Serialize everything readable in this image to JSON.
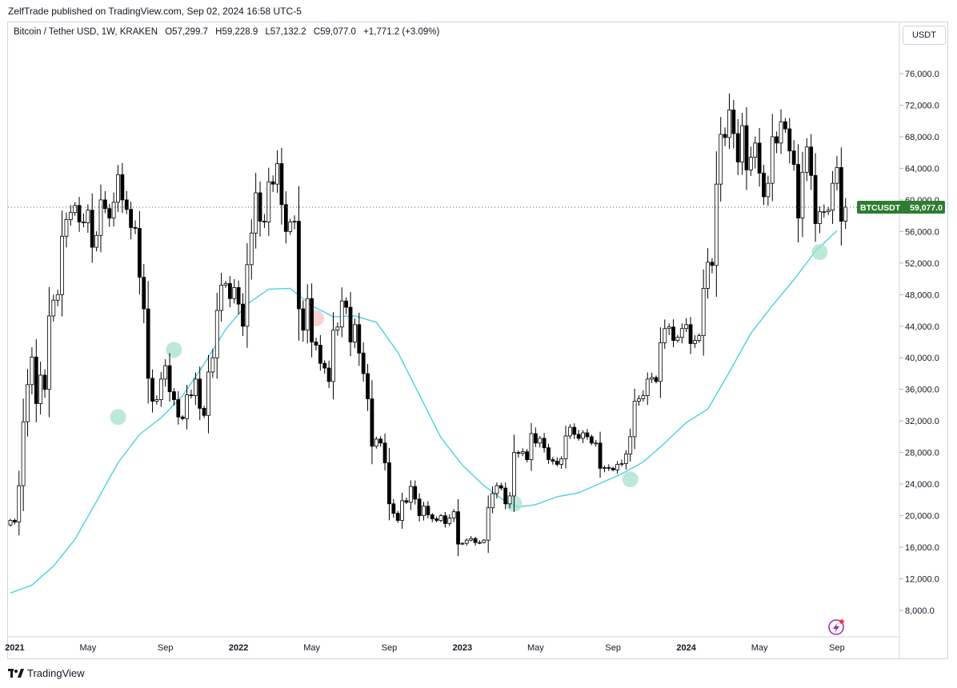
{
  "header": {
    "publisher_line": "ZelfTrade published on TradingView.com, Sep 02, 2024 16:58 UTC-5"
  },
  "symbol_bar": {
    "name": "Bitcoin / Tether USD, 1W, KRAKEN",
    "open": "O57,299.7",
    "high": "H59,228.9",
    "low": "L57,132.2",
    "close": "C59,077.0",
    "change": "+1,771.2 (+3.09%)"
  },
  "currency_button": "USDT",
  "price_label": {
    "ticker": "BTCUSDT",
    "value": "59,077.0"
  },
  "brand": "TradingView",
  "colors": {
    "up_candle": "#ffffff",
    "down_candle": "#000000",
    "ma_line": "#4dd0e1",
    "touch_green": "#a5e0d0",
    "touch_red": "#f7c3c3",
    "price_tag": "#2e7d32",
    "last_price_line": "#2e7d32"
  },
  "chart_data": {
    "type": "candlestick",
    "ylim": [
      4000,
      80000
    ],
    "y_ticks": [
      8000,
      12000,
      16000,
      20000,
      24000,
      28000,
      32000,
      36000,
      40000,
      44000,
      48000,
      52000,
      56000,
      60000,
      64000,
      68000,
      72000,
      76000
    ],
    "y_tick_labels": [
      "8,000.0",
      "12,000.0",
      "16,000.0",
      "20,000.0",
      "24,000.0",
      "28,000.0",
      "32,000.0",
      "36,000.0",
      "40,000.0",
      "44,000.0",
      "48,000.0",
      "52,000.0",
      "56,000.0",
      "60,000.0",
      "64,000.0",
      "68,000.0",
      "72,000.0",
      "76,000.0"
    ],
    "x_tick_labels": [
      {
        "label": "2021",
        "week": 1,
        "bold": true
      },
      {
        "label": "May",
        "week": 18,
        "bold": false
      },
      {
        "label": "Sep",
        "week": 36,
        "bold": false
      },
      {
        "label": "2022",
        "week": 53,
        "bold": true
      },
      {
        "label": "May",
        "week": 70,
        "bold": false
      },
      {
        "label": "Sep",
        "week": 88,
        "bold": false
      },
      {
        "label": "2023",
        "week": 105,
        "bold": true
      },
      {
        "label": "May",
        "week": 122,
        "bold": false
      },
      {
        "label": "Sep",
        "week": 140,
        "bold": false
      },
      {
        "label": "2024",
        "week": 157,
        "bold": true
      },
      {
        "label": "May",
        "week": 174,
        "bold": false
      },
      {
        "label": "Sep",
        "week": 192,
        "bold": false
      }
    ],
    "last_price": 59077,
    "closes": [
      19400,
      19200,
      23800,
      31900,
      36600,
      40100,
      34200,
      37800,
      36000,
      45300,
      47300,
      48000,
      55400,
      57500,
      58400,
      59300,
      57200,
      57100,
      58700,
      54000,
      55500,
      60000,
      58900,
      57700,
      59700,
      63200,
      60000,
      58800,
      56500,
      56400,
      50200,
      46200,
      37400,
      34500,
      34700,
      37300,
      39000,
      35700,
      34700,
      32500,
      32300,
      35300,
      35200,
      37300,
      33600,
      32700,
      38200,
      40000,
      46000,
      49200,
      49400,
      47500,
      48900,
      46800,
      44000,
      51800,
      55800,
      60900,
      57300,
      57200,
      62300,
      62000,
      64600,
      59400,
      56000,
      57200,
      57300,
      46200,
      43500,
      47500,
      42000,
      41600,
      39300,
      38700,
      37000,
      43500,
      43900,
      47200,
      46400,
      42000,
      44200,
      40600,
      38000,
      34800,
      28800,
      29700,
      29200,
      26700,
      21500,
      20300,
      19400,
      21900,
      21700,
      23700,
      22100,
      20000,
      21200,
      20100,
      19600,
      19400,
      20000,
      19000,
      19700,
      20500,
      16400,
      16500,
      16900,
      17100,
      16600,
      16600,
      16900,
      21000,
      22800,
      23800,
      23500,
      21500,
      22500,
      28000,
      27900,
      28100,
      27100,
      30400,
      29200,
      29800,
      28600,
      27100,
      26900,
      26500,
      27200,
      30100,
      31200,
      30300,
      29800,
      30500,
      30000,
      29200,
      29200,
      26000,
      26100,
      26000,
      25800,
      26500,
      26600,
      27800,
      30000,
      34500,
      34800,
      35200,
      37300,
      37500,
      37000,
      41900,
      43700,
      43900,
      42200,
      42600,
      43700,
      44200,
      41800,
      42200,
      42800,
      48800,
      52100,
      51700,
      62000,
      68300,
      67900,
      71400,
      68400,
      64800,
      69400,
      63800,
      65400,
      67200,
      63400,
      60400,
      62100,
      68000,
      67200,
      69900,
      69000,
      66200,
      64500,
      57700,
      63500,
      66700,
      63100,
      57000,
      58500,
      58500,
      58700,
      62100,
      64100,
      57300,
      59077
    ],
    "moving_average": {
      "name": "",
      "values": [
        {
          "week": 0,
          "value": 10200
        },
        {
          "week": 5,
          "value": 11200
        },
        {
          "week": 10,
          "value": 13600
        },
        {
          "week": 15,
          "value": 17000
        },
        {
          "week": 20,
          "value": 21800
        },
        {
          "week": 25,
          "value": 26700
        },
        {
          "week": 30,
          "value": 30300
        },
        {
          "week": 35,
          "value": 32400
        },
        {
          "week": 40,
          "value": 35200
        },
        {
          "week": 45,
          "value": 39200
        },
        {
          "week": 50,
          "value": 43600
        },
        {
          "week": 55,
          "value": 46800
        },
        {
          "week": 60,
          "value": 48700
        },
        {
          "week": 65,
          "value": 48800
        },
        {
          "week": 70,
          "value": 46600
        },
        {
          "week": 75,
          "value": 45200
        },
        {
          "week": 80,
          "value": 45300
        },
        {
          "week": 85,
          "value": 44500
        },
        {
          "week": 90,
          "value": 40700
        },
        {
          "week": 95,
          "value": 35300
        },
        {
          "week": 100,
          "value": 29900
        },
        {
          "week": 105,
          "value": 26400
        },
        {
          "week": 110,
          "value": 23800
        },
        {
          "week": 115,
          "value": 21800
        },
        {
          "week": 118,
          "value": 21100
        },
        {
          "week": 122,
          "value": 21400
        },
        {
          "week": 127,
          "value": 22400
        },
        {
          "week": 132,
          "value": 22900
        },
        {
          "week": 137,
          "value": 24100
        },
        {
          "week": 142,
          "value": 25300
        },
        {
          "week": 147,
          "value": 26800
        },
        {
          "week": 152,
          "value": 29200
        },
        {
          "week": 157,
          "value": 31800
        },
        {
          "week": 162,
          "value": 33500
        },
        {
          "week": 167,
          "value": 38200
        },
        {
          "week": 172,
          "value": 43100
        },
        {
          "week": 177,
          "value": 46600
        },
        {
          "week": 182,
          "value": 49900
        },
        {
          "week": 187,
          "value": 53500
        },
        {
          "week": 192,
          "value": 56100
        }
      ]
    },
    "touch_markers": [
      {
        "week": 25,
        "value": 32500,
        "kind": "support"
      },
      {
        "week": 38,
        "value": 41000,
        "kind": "support"
      },
      {
        "week": 71,
        "value": 45000,
        "kind": "resistance"
      },
      {
        "week": 117,
        "value": 21500,
        "kind": "support"
      },
      {
        "week": 144,
        "value": 24600,
        "kind": "support"
      },
      {
        "week": 188,
        "value": 53400,
        "kind": "support"
      }
    ]
  }
}
